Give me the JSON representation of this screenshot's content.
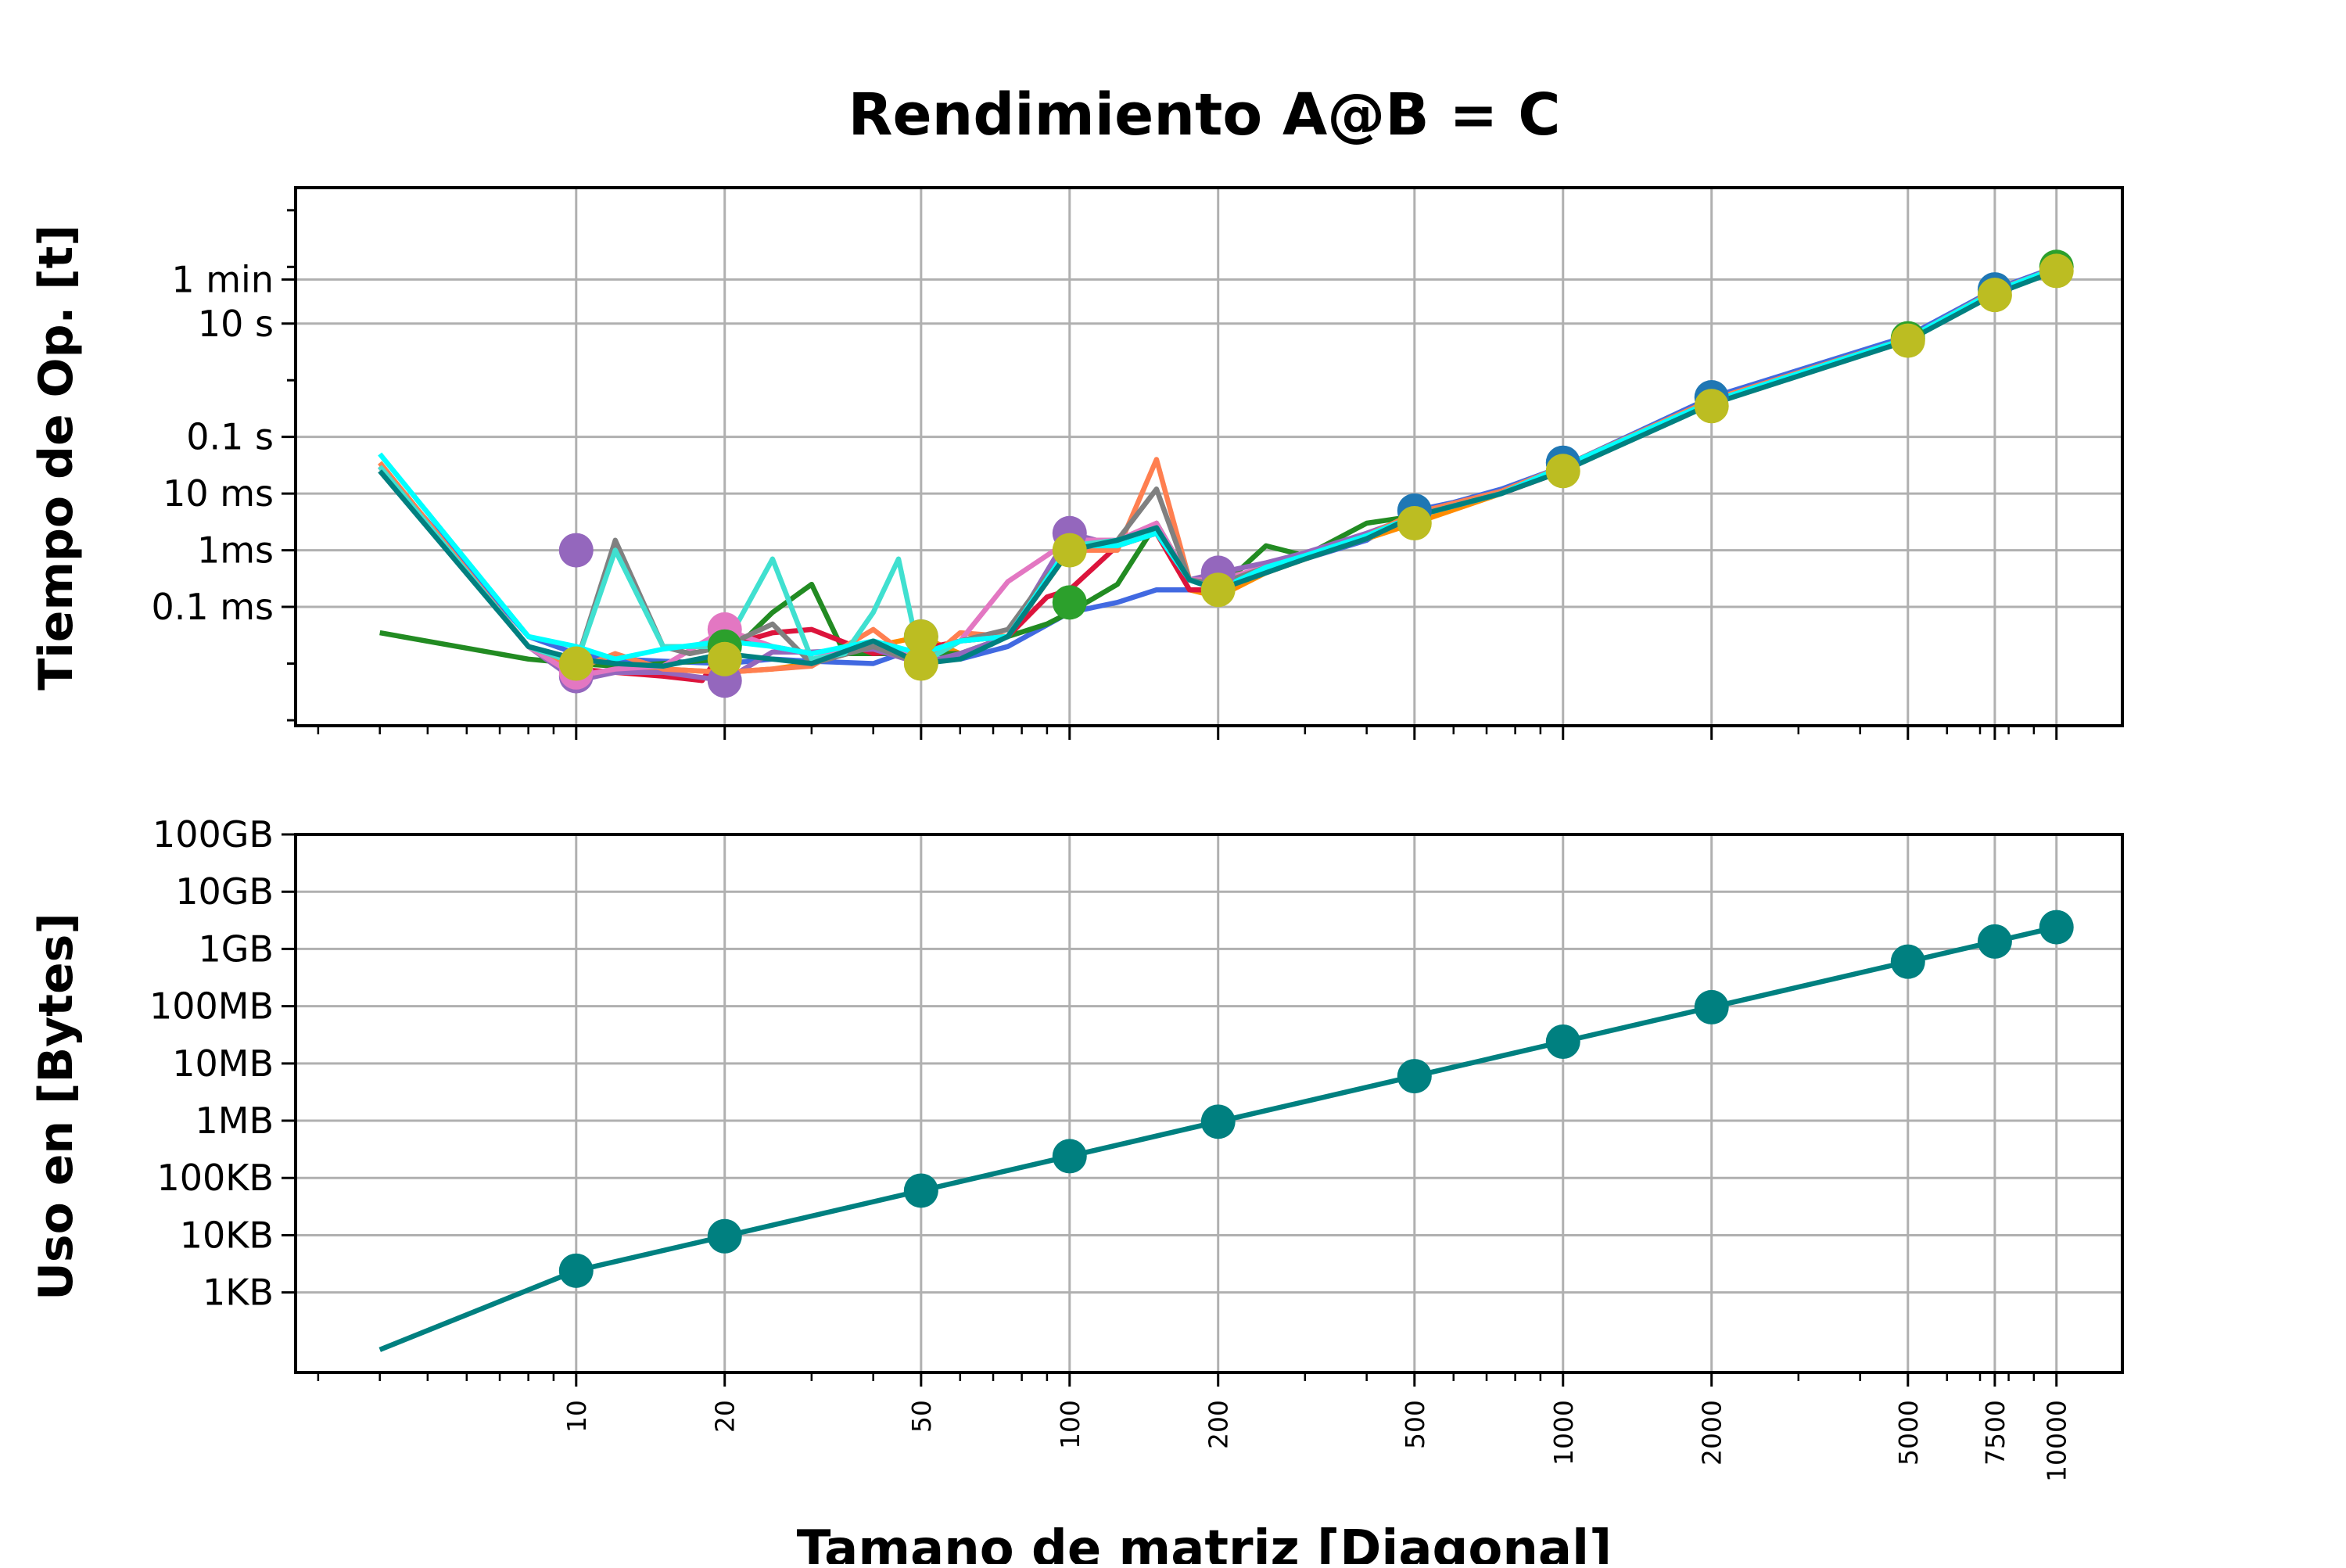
{
  "chart_data": {
    "type": "line",
    "title": "Rendimiento A@B = C",
    "xlabel": "Tamano de matriz [Diagonal]",
    "x_scale": "log",
    "xlim": [
      2.7,
      13600
    ],
    "x_ticks": [
      {
        "value": 10,
        "label": "10"
      },
      {
        "value": 20,
        "label": "20"
      },
      {
        "value": 50,
        "label": "50"
      },
      {
        "value": 100,
        "label": "100"
      },
      {
        "value": 200,
        "label": "200"
      },
      {
        "value": 500,
        "label": "500"
      },
      {
        "value": 1000,
        "label": "1000"
      },
      {
        "value": 2000,
        "label": "2000"
      },
      {
        "value": 5000,
        "label": "5000"
      },
      {
        "value": 7500,
        "label": "7500"
      },
      {
        "value": 10000,
        "label": "10000"
      }
    ],
    "grid": true,
    "panels": [
      {
        "name": "time",
        "ylabel": "Tiempo de Op. [t]",
        "y_scale": "log",
        "ylim": [
          8e-07,
          2500
        ],
        "y_ticks": [
          {
            "value": 0.0001,
            "label": "0.1 ms"
          },
          {
            "value": 0.001,
            "label": "1ms"
          },
          {
            "value": 0.01,
            "label": "10 ms"
          },
          {
            "value": 0.1,
            "label": "0.1 s"
          },
          {
            "value": 10,
            "label": "10 s"
          },
          {
            "value": 60,
            "label": "1 min"
          }
        ],
        "series": [
          {
            "color": "#4169e1",
            "x": [
              4,
              8,
              10,
              12,
              15,
              20,
              25,
              30,
              40,
              50,
              60,
              75,
              100,
              125,
              150,
              175,
              200,
              250,
              300,
              400,
              500,
              600,
              750,
              1000,
              2000,
              5000,
              7500,
              10000
            ],
            "y": [
              0.03,
              3e-05,
              1.5e-05,
              1.2e-05,
              1.1e-05,
              1e-05,
              1.2e-05,
              1.1e-05,
              1e-05,
              2e-05,
              1.2e-05,
              2e-05,
              8e-05,
              0.00012,
              0.0002,
              0.0002,
              0.0002,
              0.0004,
              0.0007,
              0.0015,
              0.005,
              0.007,
              0.012,
              0.03,
              0.5,
              6,
              40,
              100
            ]
          },
          {
            "color": "#ff8c00",
            "x": [
              4,
              8,
              10,
              12,
              15,
              20,
              25,
              30,
              40,
              50,
              60,
              75,
              100,
              125,
              150,
              175,
              200,
              250,
              300,
              400,
              500,
              750,
              1000,
              2000,
              5000,
              7500,
              10000
            ],
            "y": [
              0.035,
              2e-05,
              6e-06,
              7e-06,
              8e-06,
              7e-06,
              8e-06,
              1e-05,
              2e-05,
              3e-05,
              1.5e-05,
              3e-05,
              0.001,
              0.0012,
              0.002,
              0.0002,
              0.00015,
              0.0004,
              0.0007,
              0.0016,
              0.003,
              0.01,
              0.03,
              0.45,
              5.5,
              38,
              95
            ]
          },
          {
            "color": "#228b22",
            "x": [
              4,
              8,
              10,
              12,
              15,
              20,
              25,
              30,
              35,
              40,
              50,
              60,
              75,
              90,
              100,
              125,
              150,
              175,
              200,
              250,
              300,
              400,
              500,
              750,
              1000,
              2000,
              5000,
              7500,
              10000
            ],
            "y": [
              3.5e-05,
              1.2e-05,
              1e-05,
              9e-06,
              1e-05,
              1.2e-05,
              8e-05,
              0.00025,
              1.5e-05,
              1.5e-05,
              1.5e-05,
              1.5e-05,
              3e-05,
              5e-05,
              8e-05,
              0.00025,
              0.003,
              0.0003,
              0.0002,
              0.0012,
              0.0008,
              0.003,
              0.004,
              0.01,
              0.03,
              0.4,
              5,
              35,
              90
            ]
          },
          {
            "color": "#dc143c",
            "x": [
              4,
              8,
              10,
              12,
              15,
              18,
              20,
              25,
              30,
              40,
              50,
              60,
              75,
              90,
              100,
              125,
              150,
              175,
              200,
              250,
              300,
              400,
              500,
              750,
              1000,
              2000,
              5000,
              7500,
              10000
            ],
            "y": [
              0.03,
              2e-05,
              8e-06,
              7e-06,
              6e-06,
              5e-06,
              2e-05,
              3.5e-05,
              4e-05,
              1.5e-05,
              1.8e-05,
              2.5e-05,
              3e-05,
              0.00015,
              0.0002,
              0.0012,
              0.002,
              0.0002,
              0.0002,
              0.0005,
              0.0008,
              0.0018,
              0.004,
              0.01,
              0.025,
              0.4,
              5,
              36,
              92
            ]
          },
          {
            "color": "#9467bd",
            "x": [
              4,
              8,
              10,
              12,
              15,
              20,
              25,
              30,
              40,
              50,
              60,
              75,
              100,
              125,
              150,
              175,
              200,
              250,
              300,
              400,
              500,
              750,
              1000,
              2000,
              5000,
              7500,
              10000
            ],
            "y": [
              0.03,
              2e-05,
              5e-06,
              7e-06,
              7e-06,
              5e-06,
              1.6e-05,
              1.6e-05,
              1.8e-05,
              1e-05,
              1.5e-05,
              3e-05,
              0.002,
              0.0012,
              0.002,
              0.0003,
              0.0004,
              0.0006,
              0.0009,
              0.002,
              0.004,
              0.01,
              0.03,
              0.42,
              5.5,
              38,
              96
            ]
          },
          {
            "color": "#ff7f50",
            "x": [
              4,
              8,
              10,
              12,
              15,
              20,
              25,
              30,
              40,
              50,
              60,
              75,
              100,
              125,
              150,
              175,
              200,
              250,
              300,
              400,
              500,
              750,
              1000,
              2000,
              5000,
              7500,
              10000
            ],
            "y": [
              0.035,
              2e-05,
              8e-06,
              1.5e-05,
              8e-06,
              7e-06,
              8e-06,
              9e-06,
              4e-05,
              9e-06,
              3.5e-05,
              3e-05,
              0.001,
              0.001,
              0.04,
              0.0003,
              0.00025,
              0.0005,
              0.0008,
              0.0018,
              0.0045,
              0.011,
              0.03,
              0.45,
              5.5,
              38,
              95
            ]
          },
          {
            "color": "#e377c2",
            "x": [
              4,
              8,
              10,
              12,
              15,
              20,
              25,
              30,
              40,
              50,
              60,
              75,
              100,
              125,
              150,
              175,
              200,
              250,
              300,
              400,
              500,
              750,
              1000,
              2000,
              5000,
              7500,
              10000
            ],
            "y": [
              0.03,
              2e-05,
              6e-06,
              8e-06,
              9e-06,
              4e-05,
              2e-05,
              1.5e-05,
              2e-05,
              1.5e-05,
              2.5e-05,
              0.00028,
              0.0015,
              0.0015,
              0.003,
              0.0003,
              0.0003,
              0.0005,
              0.0008,
              0.0018,
              0.004,
              0.01,
              0.03,
              0.42,
              5.2,
              36,
              92
            ]
          },
          {
            "color": "#808080",
            "x": [
              4,
              8,
              10,
              12,
              15,
              17,
              20,
              25,
              30,
              40,
              50,
              60,
              75,
              90,
              100,
              125,
              150,
              175,
              200,
              250,
              300,
              400,
              500,
              750,
              1000,
              2000,
              5000,
              7500,
              10000
            ],
            "y": [
              0.03,
              2e-05,
              1e-05,
              0.0015,
              2e-05,
              1.5e-05,
              2e-05,
              5e-05,
              1e-05,
              2e-05,
              1e-05,
              2.5e-05,
              4e-05,
              0.00035,
              0.001,
              0.0015,
              0.012,
              0.0003,
              0.00025,
              0.0005,
              0.0008,
              0.0018,
              0.004,
              0.01,
              0.03,
              0.42,
              5.5,
              37,
              95
            ]
          },
          {
            "color": "#40e0d0",
            "x": [
              4,
              8,
              10,
              12,
              15,
              20,
              25,
              30,
              35,
              40,
              45,
              50,
              60,
              75,
              100,
              125,
              150,
              175,
              200,
              250,
              300,
              400,
              500,
              750,
              1000,
              2000,
              5000,
              7500,
              10000
            ],
            "y": [
              0.03,
              2e-05,
              1e-05,
              0.001,
              2e-05,
              2e-05,
              0.0007,
              1.2e-05,
              1.5e-05,
              8e-05,
              0.0007,
              1e-05,
              2.5e-05,
              3e-05,
              0.0012,
              0.0015,
              0.0025,
              0.0003,
              0.0002,
              0.0005,
              0.0008,
              0.0018,
              0.004,
              0.01,
              0.03,
              0.42,
              5.5,
              37,
              95
            ]
          },
          {
            "color": "#00ffff",
            "x": [
              4,
              8,
              10,
              12,
              15,
              20,
              25,
              30,
              40,
              50,
              60,
              75,
              100,
              125,
              150,
              175,
              200,
              250,
              300,
              400,
              500,
              750,
              1000,
              2000,
              5000,
              7500,
              10000
            ],
            "y": [
              0.05,
              3e-05,
              2e-05,
              1.2e-05,
              1.8e-05,
              2.5e-05,
              2e-05,
              1.5e-05,
              2.5e-05,
              1.5e-05,
              2.5e-05,
              3e-05,
              0.0012,
              0.0012,
              0.002,
              0.0003,
              0.0002,
              0.0005,
              0.0008,
              0.0018,
              0.004,
              0.01,
              0.03,
              0.42,
              5.5,
              37,
              95
            ]
          },
          {
            "color": "#008080",
            "x": [
              4,
              8,
              10,
              12,
              15,
              20,
              25,
              30,
              40,
              50,
              60,
              75,
              100,
              125,
              150,
              175,
              200,
              250,
              300,
              400,
              500,
              750,
              1000,
              2000,
              5000,
              7500,
              10000
            ],
            "y": [
              0.025,
              2e-05,
              1.2e-05,
              1e-05,
              9e-06,
              1.5e-05,
              1.2e-05,
              1e-05,
              2.5e-05,
              1e-05,
              1.2e-05,
              3e-05,
              0.001,
              0.0015,
              0.0025,
              0.0003,
              0.0002,
              0.0004,
              0.0007,
              0.0016,
              0.004,
              0.01,
              0.025,
              0.38,
              5,
              33,
              85
            ]
          }
        ],
        "markers": [
          {
            "x": 10,
            "y": 0.001,
            "color": "#9467bd"
          },
          {
            "x": 10,
            "y": 6e-06,
            "color": "#9467bd"
          },
          {
            "x": 10,
            "y": 7e-06,
            "color": "#e377c2"
          },
          {
            "x": 10,
            "y": 1e-05,
            "color": "#bcbd22"
          },
          {
            "x": 20,
            "y": 5e-06,
            "color": "#9467bd"
          },
          {
            "x": 20,
            "y": 4e-05,
            "color": "#e377c2"
          },
          {
            "x": 20,
            "y": 2e-05,
            "color": "#2ca02c"
          },
          {
            "x": 20,
            "y": 1.2e-05,
            "color": "#bcbd22"
          },
          {
            "x": 50,
            "y": 3e-05,
            "color": "#1f77b4"
          },
          {
            "x": 50,
            "y": 3e-05,
            "color": "#bcbd22"
          },
          {
            "x": 50,
            "y": 1e-05,
            "color": "#bcbd22"
          },
          {
            "x": 100,
            "y": 0.002,
            "color": "#9467bd"
          },
          {
            "x": 100,
            "y": 0.00012,
            "color": "#2ca02c"
          },
          {
            "x": 100,
            "y": 0.001,
            "color": "#bcbd22"
          },
          {
            "x": 200,
            "y": 0.0004,
            "color": "#9467bd"
          },
          {
            "x": 200,
            "y": 0.0002,
            "color": "#bcbd22"
          },
          {
            "x": 500,
            "y": 0.005,
            "color": "#1f77b4"
          },
          {
            "x": 500,
            "y": 0.003,
            "color": "#bcbd22"
          },
          {
            "x": 1000,
            "y": 0.035,
            "color": "#1f77b4"
          },
          {
            "x": 1000,
            "y": 0.025,
            "color": "#bcbd22"
          },
          {
            "x": 2000,
            "y": 0.5,
            "color": "#1f77b4"
          },
          {
            "x": 2000,
            "y": 0.35,
            "color": "#bcbd22"
          },
          {
            "x": 5000,
            "y": 5.5,
            "color": "#2ca02c"
          },
          {
            "x": 5000,
            "y": 5,
            "color": "#bcbd22"
          },
          {
            "x": 7500,
            "y": 40,
            "color": "#1f77b4"
          },
          {
            "x": 7500,
            "y": 32,
            "color": "#bcbd22"
          },
          {
            "x": 10000,
            "y": 100,
            "color": "#2ca02c"
          },
          {
            "x": 10000,
            "y": 85,
            "color": "#bcbd22"
          }
        ]
      },
      {
        "name": "memory",
        "ylabel": "Uso en [Bytes]",
        "y_scale": "log",
        "ylim": [
          40,
          100000000000
        ],
        "y_ticks": [
          {
            "value": 1000,
            "label": "1KB"
          },
          {
            "value": 10000,
            "label": "10KB"
          },
          {
            "value": 100000,
            "label": "100KB"
          },
          {
            "value": 1000000,
            "label": "1MB"
          },
          {
            "value": 10000000,
            "label": "10MB"
          },
          {
            "value": 100000000,
            "label": "100MB"
          },
          {
            "value": 1000000000,
            "label": "1GB"
          },
          {
            "value": 10000000000,
            "label": "10GB"
          },
          {
            "value": 100000000000,
            "label": "100GB"
          }
        ],
        "series": [
          {
            "color": "#008080",
            "x": [
              4,
              10,
              20,
              50,
              100,
              200,
              500,
              1000,
              2000,
              5000,
              7500,
              10000
            ],
            "y": [
              100,
              2400,
              9600,
              60000,
              240000,
              960000,
              6000000,
              24000000,
              96000000,
              600000000,
              1350000000,
              2400000000
            ],
            "marker_x": [
              10,
              20,
              50,
              100,
              200,
              500,
              1000,
              2000,
              5000,
              7500,
              10000
            ]
          }
        ]
      }
    ]
  }
}
